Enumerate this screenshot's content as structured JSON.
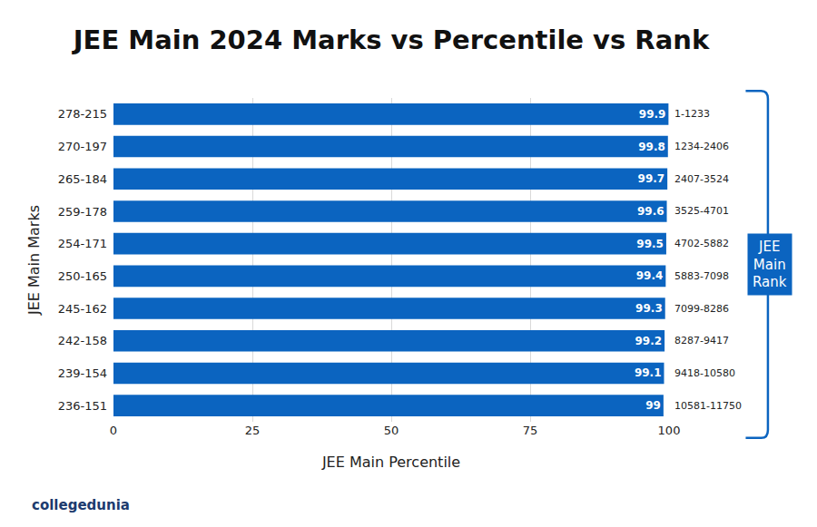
{
  "chart_data": {
    "type": "bar",
    "title": "JEE Main 2024 Marks vs Percentile vs Rank",
    "x_label": "JEE Main Percentile",
    "y_label": "JEE Main Marks",
    "orientation": "horizontal",
    "categories": [
      "278-215",
      "270-197",
      "265-184",
      "259-178",
      "254-171",
      "250-165",
      "245-162",
      "242-158",
      "239-154",
      "236-151"
    ],
    "values": [
      99.9,
      99.8,
      99.7,
      99.6,
      99.5,
      99.4,
      99.3,
      99.2,
      99.1,
      99
    ],
    "ranks": [
      "1-1233",
      "1234-2406",
      "2407-3524",
      "3525-4701",
      "4702-5882",
      "5883-7098",
      "7099-8286",
      "8287-9417",
      "9418-10580",
      "10581-11750"
    ],
    "rank_label": "JEE Main Rank",
    "source": "collegedunia",
    "color": "#0b64c0",
    "data_labels": true,
    "xlim": [
      0,
      100
    ],
    "xticks": [
      0,
      25,
      50,
      75,
      100
    ],
    "grid": true
  }
}
